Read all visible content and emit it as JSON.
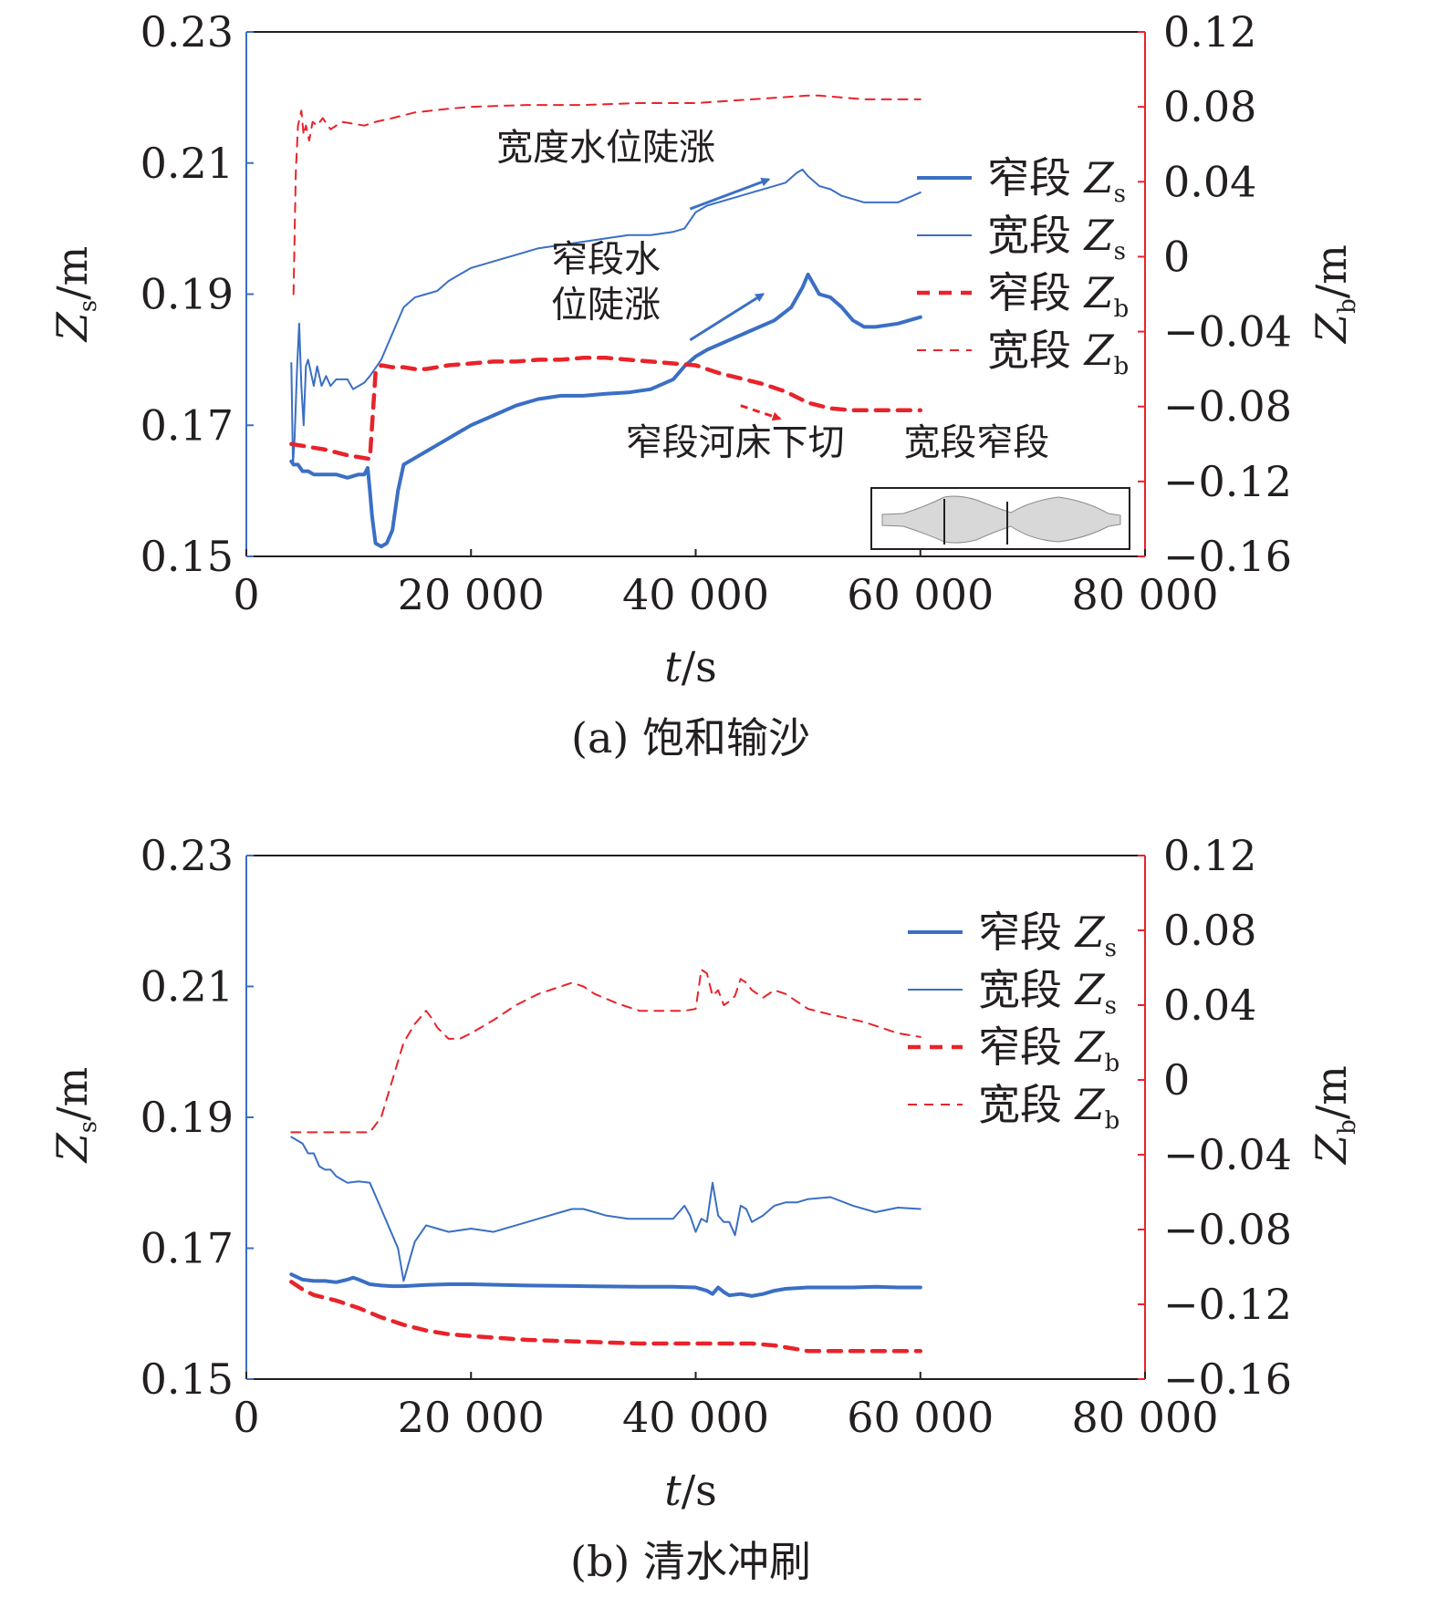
{
  "colors": {
    "blue": "#3a6fc4",
    "red": "#e8232a",
    "axis": "#231f20",
    "inset_fill": "#d8d8d8"
  },
  "chart_data": [
    {
      "type": "line",
      "caption": "(a) 饱和输沙",
      "xlabel_italic": "t",
      "xlabel_unit": "/s",
      "ylabel_left_main": "Z",
      "ylabel_left_sub": "s",
      "ylabel_left_unit": "/m",
      "ylabel_right_main": "Z",
      "ylabel_right_sub": "b",
      "ylabel_right_unit": "/m",
      "xlim": [
        0,
        80000
      ],
      "ylim_left": [
        0.15,
        0.23
      ],
      "ylim_right": [
        -0.16,
        0.12
      ],
      "x_ticks": [
        0,
        20000,
        40000,
        60000,
        80000
      ],
      "x_tick_labels": [
        "0",
        "20 000",
        "40 000",
        "60 000",
        "80 000"
      ],
      "y_left_ticks": [
        0.15,
        0.17,
        0.19,
        0.21,
        0.23
      ],
      "y_left_tick_labels": [
        "0.15",
        "0.17",
        "0.19",
        "0.21",
        "0.23"
      ],
      "y_right_ticks": [
        -0.16,
        -0.12,
        -0.08,
        -0.04,
        0,
        0.04,
        0.08,
        0.12
      ],
      "y_right_tick_labels": [
        "−0.16",
        "−0.12",
        "−0.08",
        "−0.04",
        "0",
        "0.04",
        "0.08",
        "0.12"
      ],
      "legend": [
        {
          "label_cn": "窄段",
          "sym": "Z",
          "sub": "s",
          "series": 0
        },
        {
          "label_cn": "宽段",
          "sym": "Z",
          "sub": "s",
          "series": 1
        },
        {
          "label_cn": "窄段",
          "sym": "Z",
          "sub": "b",
          "series": 2
        },
        {
          "label_cn": "宽段",
          "sym": "Z",
          "sub": "b",
          "series": 3
        }
      ],
      "annotations": [
        {
          "text": "宽度水位陡涨",
          "x": 32000,
          "y_left": 0.2105
        },
        {
          "text": "窄段水",
          "x": 32000,
          "y_left": 0.1935
        },
        {
          "text": "位陡涨",
          "x": 32000,
          "y_left": 0.1865
        },
        {
          "text": "窄段河床下切",
          "x": 43500,
          "y_left": 0.1655
        },
        {
          "text": "宽段窄段",
          "x": 65000,
          "y_left": 0.1655
        }
      ],
      "arrows": [
        {
          "color": "blue",
          "from": [
            39500,
            0.203
          ],
          "to": [
            46500,
            0.2075
          ]
        },
        {
          "color": "blue",
          "from": [
            39500,
            0.183
          ],
          "to": [
            46000,
            0.19
          ]
        },
        {
          "color": "red",
          "from": [
            44000,
            0.173
          ],
          "to": [
            47500,
            0.171
          ]
        }
      ],
      "series": [
        {
          "name": "窄段 Zs",
          "axis": "left",
          "style": "thick-solid",
          "x": [
            4000,
            4200,
            4600,
            5000,
            5500,
            6000,
            7000,
            8000,
            9000,
            10000,
            10500,
            10800,
            11000,
            11200,
            11500,
            12000,
            12500,
            13000,
            13500,
            14000,
            15000,
            16000,
            17000,
            18000,
            19000,
            20000,
            22000,
            24000,
            26000,
            28000,
            30000,
            32000,
            34000,
            36000,
            38000,
            39000,
            40000,
            41000,
            43000,
            45000,
            47000,
            48500,
            49500,
            50000,
            51000,
            52000,
            53000,
            54000,
            55000,
            56000,
            58000,
            60000
          ],
          "y": [
            0.1645,
            0.164,
            0.164,
            0.163,
            0.163,
            0.1625,
            0.1625,
            0.1625,
            0.162,
            0.1625,
            0.1625,
            0.1635,
            0.16,
            0.156,
            0.152,
            0.1515,
            0.152,
            0.154,
            0.16,
            0.164,
            0.165,
            0.166,
            0.167,
            0.168,
            0.169,
            0.17,
            0.1715,
            0.173,
            0.174,
            0.1745,
            0.1745,
            0.1748,
            0.175,
            0.1755,
            0.177,
            0.179,
            0.1805,
            0.1815,
            0.183,
            0.1845,
            0.186,
            0.188,
            0.191,
            0.193,
            0.19,
            0.1895,
            0.188,
            0.186,
            0.185,
            0.185,
            0.1855,
            0.1865
          ]
        },
        {
          "name": "宽段 Zs",
          "axis": "left",
          "style": "thin-solid",
          "x": [
            4000,
            4150,
            4300,
            4500,
            4700,
            4900,
            5100,
            5300,
            5500,
            6000,
            6300,
            6700,
            7100,
            7500,
            8000,
            9000,
            9500,
            10000,
            10500,
            11000,
            12000,
            13000,
            14000,
            15000,
            16000,
            17000,
            18000,
            19000,
            20000,
            22000,
            24000,
            26000,
            28000,
            30000,
            32000,
            34000,
            36000,
            38000,
            39000,
            40000,
            41000,
            43000,
            45000,
            47000,
            48000,
            49000,
            49500,
            50000,
            51000,
            52000,
            53000,
            54000,
            55000,
            56000,
            58000,
            60000
          ],
          "y": [
            0.1795,
            0.164,
            0.168,
            0.178,
            0.1855,
            0.176,
            0.17,
            0.179,
            0.18,
            0.176,
            0.179,
            0.176,
            0.1775,
            0.176,
            0.177,
            0.177,
            0.1755,
            0.176,
            0.1765,
            0.1775,
            0.18,
            0.184,
            0.188,
            0.1895,
            0.19,
            0.1905,
            0.192,
            0.193,
            0.194,
            0.195,
            0.196,
            0.197,
            0.1975,
            0.198,
            0.1985,
            0.199,
            0.199,
            0.1995,
            0.2,
            0.2025,
            0.2035,
            0.2045,
            0.2055,
            0.2065,
            0.207,
            0.2085,
            0.209,
            0.208,
            0.2065,
            0.206,
            0.205,
            0.2045,
            0.204,
            0.204,
            0.204,
            0.2055
          ]
        },
        {
          "name": "窄段 Zb",
          "axis": "right",
          "style": "thick-dash",
          "x": [
            4000,
            5000,
            7000,
            9000,
            11000,
            11500,
            12000,
            13000,
            14000,
            15000,
            16000,
            18000,
            20000,
            22000,
            24000,
            26000,
            28000,
            30000,
            32000,
            34000,
            36000,
            38000,
            40000,
            42000,
            44000,
            46000,
            48000,
            50000,
            52000,
            54000,
            56000,
            58000,
            60000
          ],
          "y": [
            -0.1,
            -0.101,
            -0.103,
            -0.106,
            -0.108,
            -0.062,
            -0.058,
            -0.059,
            -0.059,
            -0.06,
            -0.06,
            -0.058,
            -0.057,
            -0.056,
            -0.056,
            -0.055,
            -0.055,
            -0.054,
            -0.054,
            -0.055,
            -0.056,
            -0.057,
            -0.058,
            -0.062,
            -0.065,
            -0.068,
            -0.072,
            -0.078,
            -0.081,
            -0.082,
            -0.082,
            -0.082,
            -0.082
          ]
        },
        {
          "name": "宽段 Zb",
          "axis": "right",
          "style": "thin-dash",
          "x": [
            4200,
            4400,
            4600,
            4900,
            5100,
            5300,
            5600,
            5900,
            6300,
            6800,
            7500,
            8500,
            9500,
            10500,
            11500,
            13000,
            15000,
            18000,
            20000,
            25000,
            30000,
            35000,
            40000,
            45000,
            50000,
            51000,
            53000,
            55000,
            57000,
            60000
          ],
          "y": [
            -0.02,
            0.045,
            0.07,
            0.078,
            0.065,
            0.07,
            0.062,
            0.072,
            0.07,
            0.074,
            0.068,
            0.072,
            0.071,
            0.07,
            0.072,
            0.074,
            0.077,
            0.079,
            0.08,
            0.081,
            0.081,
            0.082,
            0.082,
            0.084,
            0.086,
            0.086,
            0.085,
            0.084,
            0.084,
            0.084
          ]
        }
      ]
    },
    {
      "type": "line",
      "caption": "(b) 清水冲刷",
      "xlabel_italic": "t",
      "xlabel_unit": "/s",
      "ylabel_left_main": "Z",
      "ylabel_left_sub": "s",
      "ylabel_left_unit": "/m",
      "ylabel_right_main": "Z",
      "ylabel_right_sub": "b",
      "ylabel_right_unit": "/m",
      "xlim": [
        0,
        80000
      ],
      "ylim_left": [
        0.15,
        0.23
      ],
      "ylim_right": [
        -0.16,
        0.12
      ],
      "x_ticks": [
        0,
        20000,
        40000,
        60000,
        80000
      ],
      "x_tick_labels": [
        "0",
        "20 000",
        "40 000",
        "60 000",
        "80 000"
      ],
      "y_left_ticks": [
        0.15,
        0.17,
        0.19,
        0.21,
        0.23
      ],
      "y_left_tick_labels": [
        "0.15",
        "0.17",
        "0.19",
        "0.21",
        "0.23"
      ],
      "y_right_ticks": [
        -0.16,
        -0.12,
        -0.08,
        -0.04,
        0,
        0.04,
        0.08,
        0.12
      ],
      "y_right_tick_labels": [
        "−0.16",
        "−0.12",
        "−0.08",
        "−0.04",
        "0",
        "0.04",
        "0.08",
        "0.12"
      ],
      "legend": [
        {
          "label_cn": "窄段",
          "sym": "Z",
          "sub": "s",
          "series": 0
        },
        {
          "label_cn": "宽段",
          "sym": "Z",
          "sub": "s",
          "series": 1
        },
        {
          "label_cn": "窄段",
          "sym": "Z",
          "sub": "b",
          "series": 2
        },
        {
          "label_cn": "宽段",
          "sym": "Z",
          "sub": "b",
          "series": 3
        }
      ],
      "annotations": [],
      "arrows": [],
      "series": [
        {
          "name": "窄段 Zs",
          "axis": "left",
          "style": "thick-solid",
          "x": [
            4000,
            5000,
            6000,
            7000,
            8000,
            9000,
            9500,
            10000,
            11000,
            12000,
            13000,
            14000,
            16000,
            18000,
            20000,
            25000,
            30000,
            35000,
            38000,
            40000,
            41000,
            41500,
            42000,
            42500,
            43000,
            44000,
            45000,
            46000,
            47000,
            48000,
            50000,
            52000,
            54000,
            56000,
            58000,
            60000
          ],
          "y": [
            0.166,
            0.1652,
            0.165,
            0.165,
            0.1648,
            0.1652,
            0.1655,
            0.1652,
            0.1645,
            0.1643,
            0.1642,
            0.1642,
            0.1644,
            0.1645,
            0.1645,
            0.1643,
            0.1642,
            0.1641,
            0.1641,
            0.164,
            0.1635,
            0.163,
            0.164,
            0.1633,
            0.1628,
            0.163,
            0.1627,
            0.163,
            0.1635,
            0.1638,
            0.164,
            0.164,
            0.164,
            0.1641,
            0.164,
            0.164
          ]
        },
        {
          "name": "宽段 Zs",
          "axis": "left",
          "style": "thin-solid",
          "x": [
            4000,
            5000,
            5500,
            6000,
            6500,
            7000,
            7500,
            8000,
            8500,
            9000,
            10000,
            11000,
            11500,
            12000,
            13000,
            13500,
            14000,
            14500,
            15000,
            16000,
            17000,
            18000,
            20000,
            22000,
            24000,
            26000,
            28000,
            29000,
            30000,
            32000,
            34000,
            36000,
            38000,
            39000,
            39500,
            40000,
            40500,
            41000,
            41500,
            42000,
            42500,
            43000,
            43500,
            44000,
            44500,
            45000,
            46000,
            47000,
            48000,
            49000,
            50000,
            52000,
            54000,
            56000,
            58000,
            60000
          ],
          "y": [
            0.187,
            0.186,
            0.1845,
            0.1845,
            0.1825,
            0.182,
            0.182,
            0.181,
            0.1805,
            0.18,
            0.1802,
            0.18,
            0.178,
            0.176,
            0.172,
            0.17,
            0.165,
            0.168,
            0.171,
            0.1735,
            0.173,
            0.1725,
            0.173,
            0.1725,
            0.1735,
            0.1745,
            0.1755,
            0.176,
            0.176,
            0.175,
            0.1745,
            0.1745,
            0.1745,
            0.1765,
            0.175,
            0.1725,
            0.1745,
            0.174,
            0.18,
            0.175,
            0.174,
            0.174,
            0.172,
            0.1765,
            0.176,
            0.174,
            0.175,
            0.1765,
            0.177,
            0.177,
            0.1775,
            0.1778,
            0.1765,
            0.1755,
            0.1762,
            0.176
          ]
        },
        {
          "name": "窄段 Zb",
          "axis": "right",
          "style": "thick-dash",
          "x": [
            4000,
            5000,
            6000,
            8000,
            10000,
            12000,
            14000,
            16000,
            18000,
            20000,
            25000,
            30000,
            35000,
            40000,
            42000,
            44000,
            45000,
            47000,
            48000,
            50000,
            52000,
            55000,
            58000,
            60000
          ],
          "y": [
            -0.108,
            -0.112,
            -0.115,
            -0.118,
            -0.122,
            -0.127,
            -0.131,
            -0.134,
            -0.136,
            -0.137,
            -0.139,
            -0.14,
            -0.141,
            -0.141,
            -0.141,
            -0.141,
            -0.141,
            -0.142,
            -0.143,
            -0.145,
            -0.145,
            -0.145,
            -0.145,
            -0.145
          ]
        },
        {
          "name": "宽段 Zb",
          "axis": "right",
          "style": "thin-dash",
          "x": [
            4000,
            8000,
            11000,
            12000,
            13000,
            14000,
            15000,
            16000,
            16500,
            17000,
            18000,
            19000,
            20000,
            22000,
            24000,
            26000,
            28000,
            29000,
            30000,
            31000,
            33000,
            35000,
            37000,
            39000,
            40000,
            40500,
            41000,
            41500,
            42000,
            42500,
            43000,
            43500,
            44000,
            44500,
            45000,
            46000,
            47000,
            48000,
            49000,
            50000,
            52000,
            55000,
            58000,
            60000
          ],
          "y": [
            -0.028,
            -0.028,
            -0.028,
            -0.02,
            0.0,
            0.02,
            0.03,
            0.037,
            0.033,
            0.028,
            0.022,
            0.022,
            0.025,
            0.032,
            0.04,
            0.046,
            0.05,
            0.052,
            0.05,
            0.046,
            0.041,
            0.037,
            0.037,
            0.037,
            0.038,
            0.059,
            0.057,
            0.045,
            0.048,
            0.04,
            0.042,
            0.045,
            0.054,
            0.052,
            0.048,
            0.044,
            0.048,
            0.046,
            0.042,
            0.038,
            0.035,
            0.031,
            0.025,
            0.023
          ]
        }
      ]
    }
  ]
}
